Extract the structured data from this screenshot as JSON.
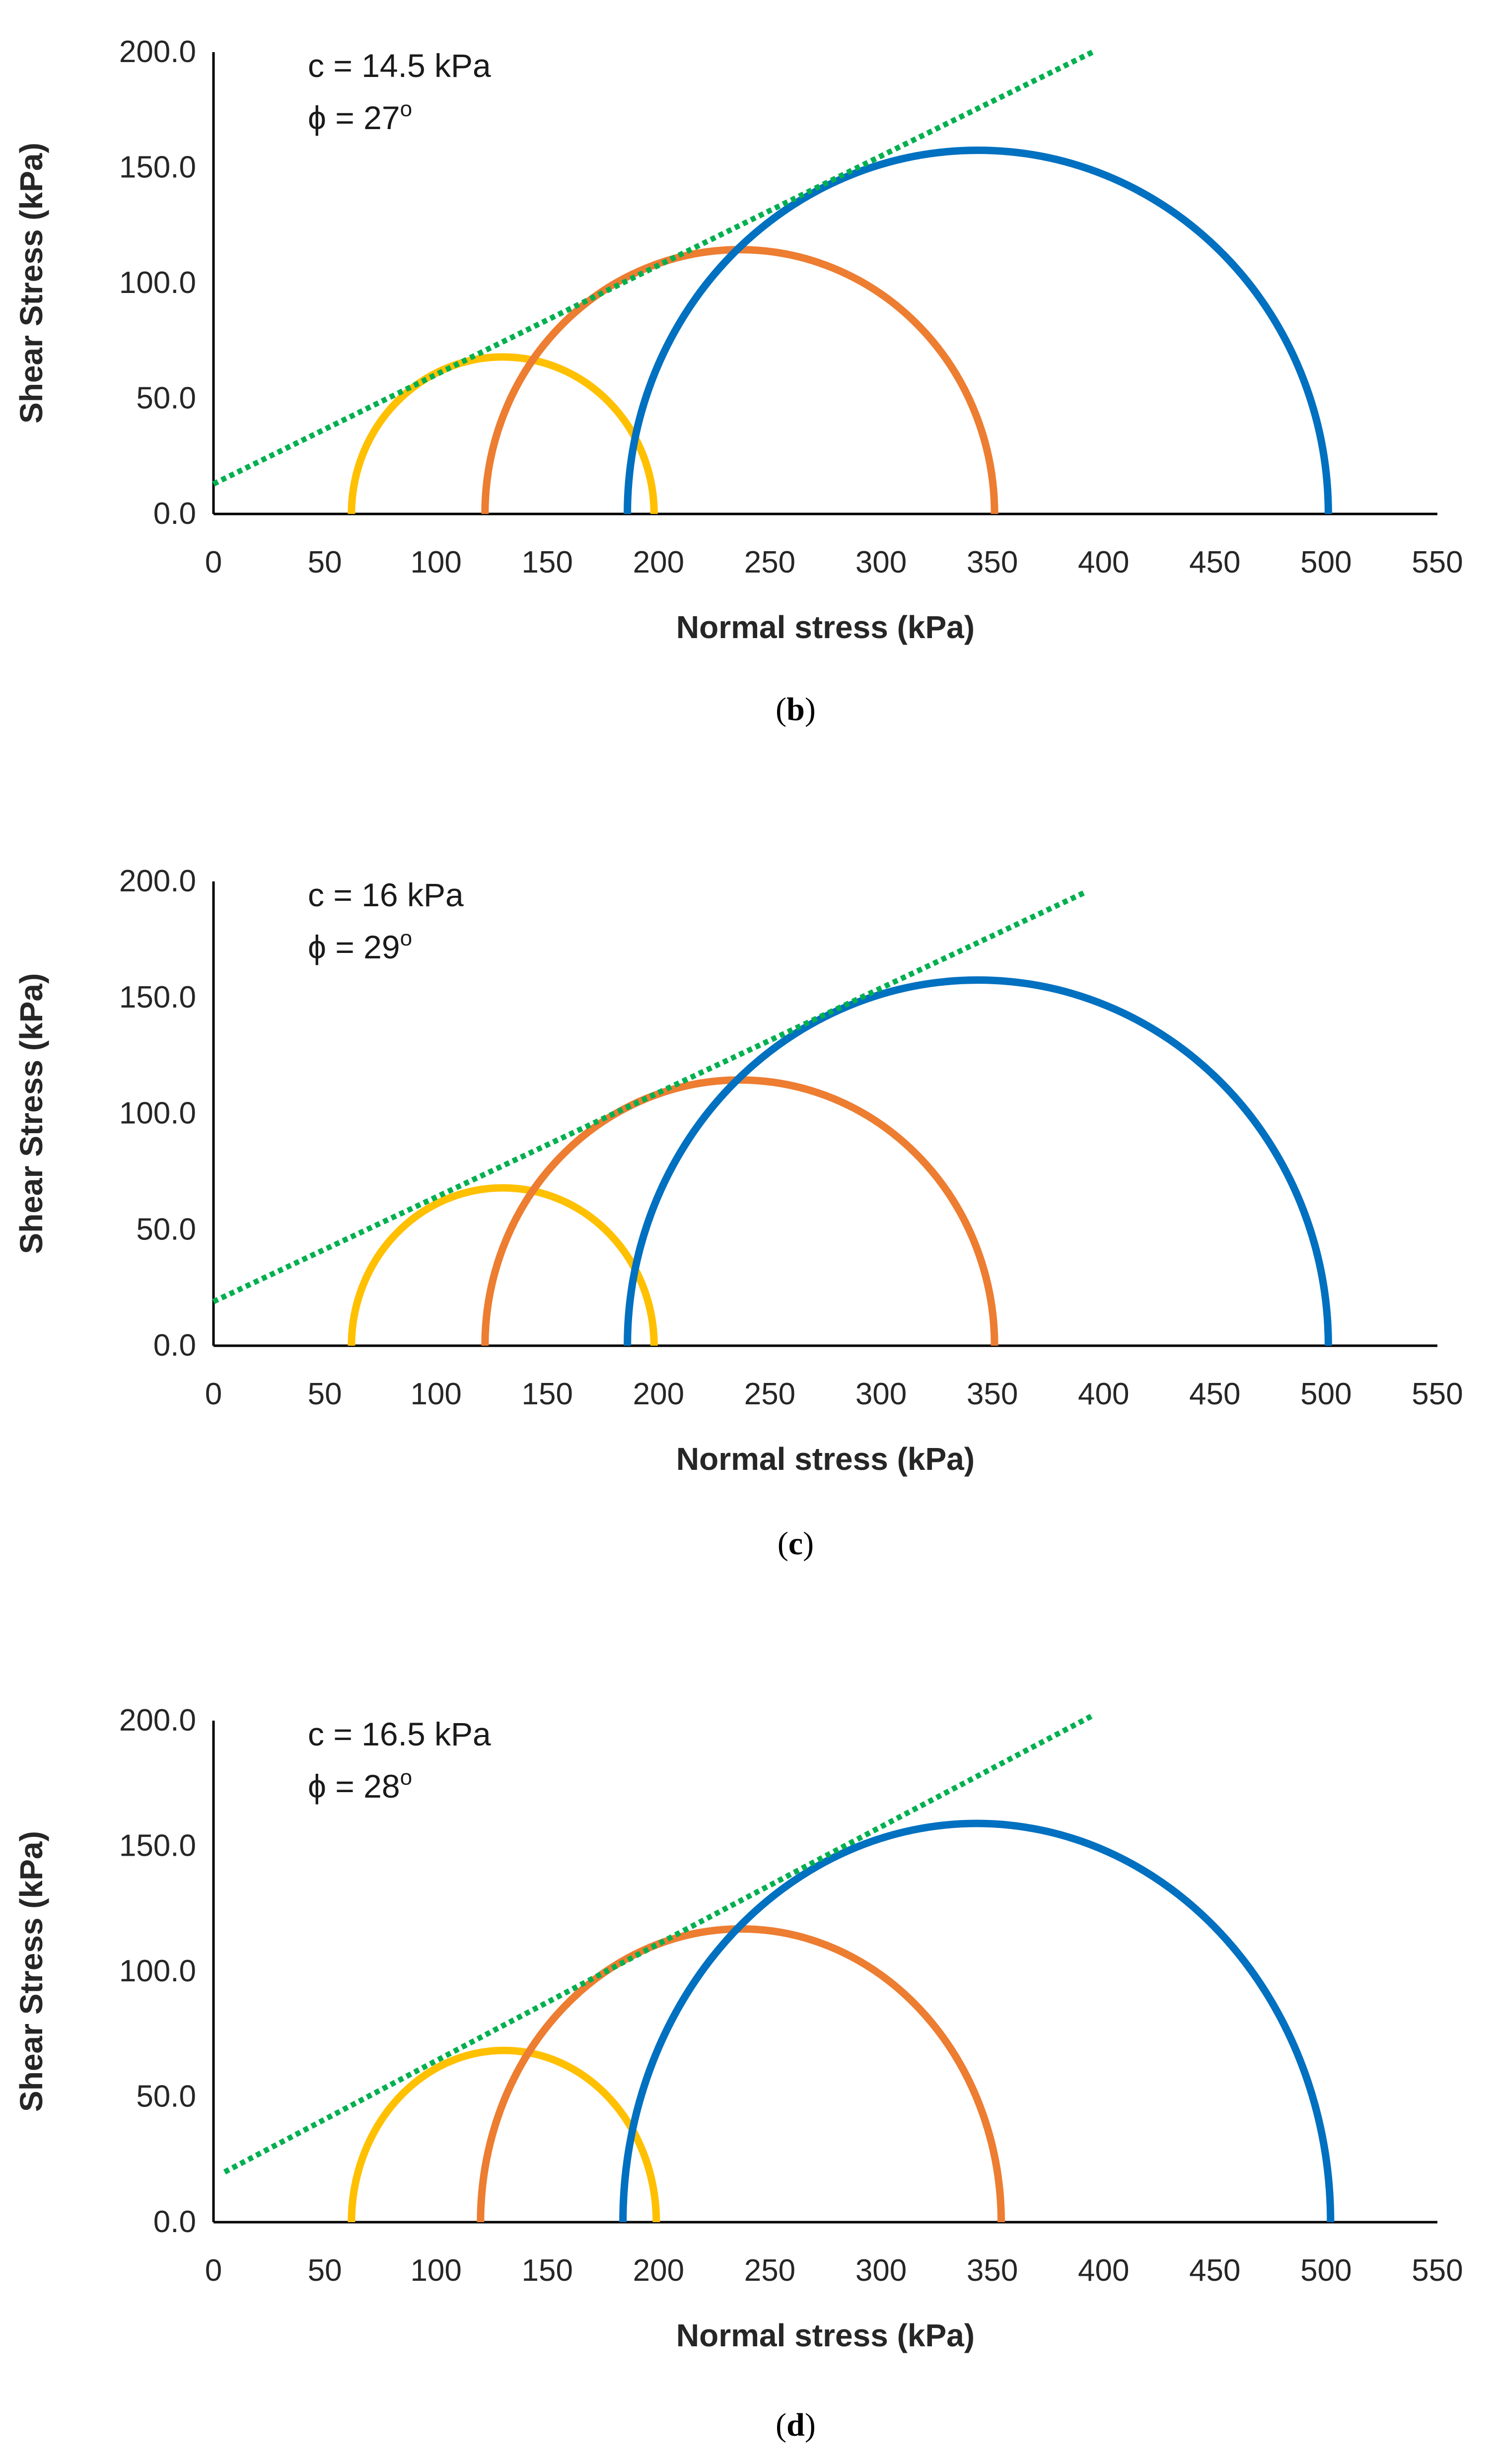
{
  "colors": {
    "series_yellow": "#FFC000",
    "series_orange": "#ED7D31",
    "series_blue": "#0070C0",
    "envelope_green": "#00B050",
    "axis": "#000000",
    "text": "#262626"
  },
  "chart_data": [
    {
      "type": "line",
      "caption": "b",
      "xlabel": "Normal stress (kPa)",
      "ylabel": "Shear Stress (kPa)",
      "xlim": [
        0,
        550
      ],
      "ylim": [
        0,
        200
      ],
      "x_ticks": [
        "0",
        "50",
        "100",
        "150",
        "200",
        "250",
        "300",
        "350",
        "400",
        "450",
        "500",
        "550"
      ],
      "y_ticks": [
        "0.0",
        "50.0",
        "100.0",
        "150.0",
        "200.0"
      ],
      "annotation": {
        "c": "c = 14.5 kPa",
        "phi_prefix": "ϕ = 27",
        "phi_degree": "o"
      },
      "grid": false,
      "legend": "none",
      "circles": [
        {
          "sigma3": 62,
          "sigma1": 198
        },
        {
          "sigma3": 122,
          "sigma1": 351
        },
        {
          "sigma3": 186,
          "sigma1": 501
        }
      ],
      "envelope": {
        "x": [
          0,
          395
        ],
        "y": [
          13,
          200
        ]
      }
    },
    {
      "type": "line",
      "caption": "c",
      "xlabel": "Normal stress (kPa)",
      "ylabel": "Shear Stress (kPa)",
      "xlim": [
        0,
        550
      ],
      "ylim": [
        0,
        200
      ],
      "x_ticks": [
        "0",
        "50",
        "100",
        "150",
        "200",
        "250",
        "300",
        "350",
        "400",
        "450",
        "500",
        "550"
      ],
      "y_ticks": [
        "0.0",
        "50.0",
        "100.0",
        "150.0",
        "200.0"
      ],
      "annotation": {
        "c": "c = 16 kPa",
        "phi_prefix": "ϕ = 29",
        "phi_degree": "o"
      },
      "grid": false,
      "legend": "none",
      "circles": [
        {
          "sigma3": 62,
          "sigma1": 198
        },
        {
          "sigma3": 122,
          "sigma1": 351
        },
        {
          "sigma3": 186,
          "sigma1": 501
        }
      ],
      "envelope": {
        "x": [
          0,
          391
        ],
        "y": [
          19,
          195
        ]
      }
    },
    {
      "type": "line",
      "caption": "d",
      "xlabel": "Normal stress (kPa)",
      "ylabel": "Shear Stress (kPa)",
      "xlim": [
        0,
        550
      ],
      "ylim": [
        0,
        200
      ],
      "x_ticks": [
        "0",
        "50",
        "100",
        "150",
        "200",
        "250",
        "300",
        "350",
        "400",
        "450",
        "500",
        "550"
      ],
      "y_ticks": [
        "0.0",
        "50.0",
        "100.0",
        "150.0",
        "200.0"
      ],
      "annotation": {
        "c": "c = 16.5 kPa",
        "phi_prefix": "ϕ = 28",
        "phi_degree": "o"
      },
      "grid": false,
      "legend": "none",
      "circles": [
        {
          "sigma3": 62,
          "sigma1": 199
        },
        {
          "sigma3": 120,
          "sigma1": 354
        },
        {
          "sigma3": 184,
          "sigma1": 502
        }
      ],
      "envelope": {
        "x": [
          5,
          395
        ],
        "y": [
          20,
          202
        ]
      }
    }
  ]
}
